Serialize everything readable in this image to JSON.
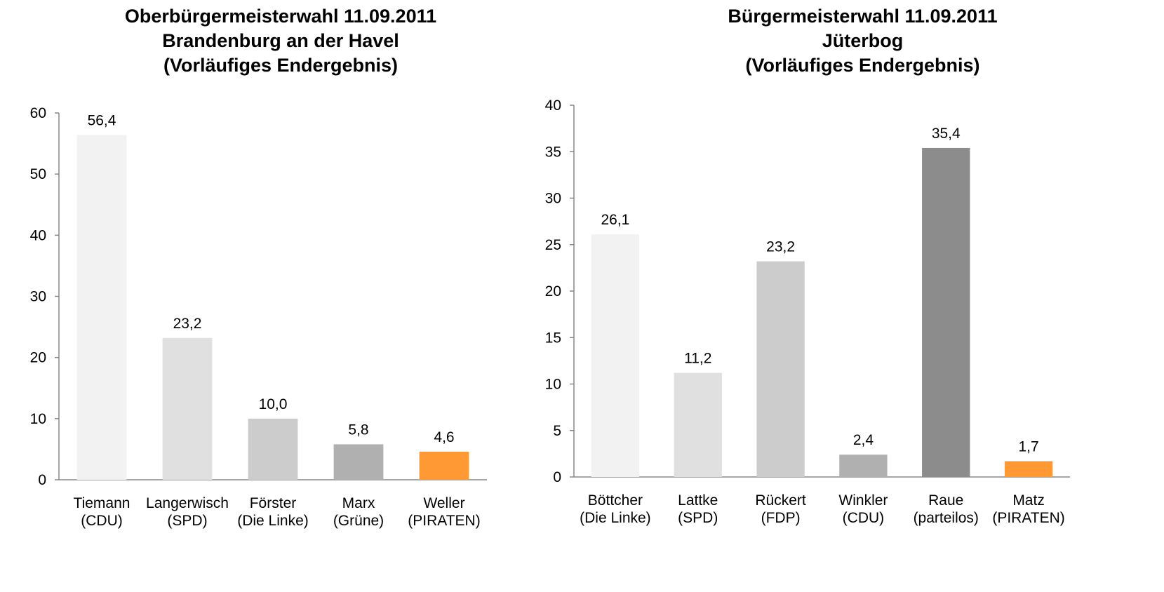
{
  "chart_data": [
    {
      "type": "bar",
      "title": "Oberbürgermeisterwahl 11.09.2011\nBrandenburg an der Havel\n(Vorläufiges Endergebnis)",
      "categories": [
        [
          "Tiemann",
          "(CDU)"
        ],
        [
          "Langerwisch",
          "(SPD)"
        ],
        [
          "Förster",
          "(Die Linke)"
        ],
        [
          "Marx",
          "(Grüne)"
        ],
        [
          "Weller",
          "(PIRATEN)"
        ]
      ],
      "values": [
        56.4,
        23.2,
        10.0,
        5.8,
        4.6
      ],
      "data_labels": [
        "56,4",
        "23,2",
        "10,0",
        "5,8",
        "4,6"
      ],
      "colors": [
        "#f2f2f2",
        "#e0e0e0",
        "#cccccc",
        "#b0b0b0",
        "#ff9933"
      ],
      "ylim": [
        0,
        60
      ],
      "yticks": [
        0,
        10,
        20,
        30,
        40,
        50,
        60
      ],
      "grid": false,
      "xlabel": "",
      "ylabel": ""
    },
    {
      "type": "bar",
      "title": "Bürgermeisterwahl 11.09.2011\nJüterbog\n(Vorläufiges Endergebnis)",
      "categories": [
        [
          "Böttcher",
          "(Die Linke)"
        ],
        [
          "Lattke",
          "(SPD)"
        ],
        [
          "Rückert",
          "(FDP)"
        ],
        [
          "Winkler",
          "(CDU)"
        ],
        [
          "Raue",
          "(parteilos)"
        ],
        [
          "Matz",
          "(PIRATEN)"
        ]
      ],
      "values": [
        26.1,
        11.2,
        23.2,
        2.4,
        35.4,
        1.7
      ],
      "data_labels": [
        "26,1",
        "11,2",
        "23,2",
        "2,4",
        "35,4",
        "1,7"
      ],
      "colors": [
        "#f2f2f2",
        "#e0e0e0",
        "#cccccc",
        "#b0b0b0",
        "#8c8c8c",
        "#ff9933"
      ],
      "ylim": [
        0,
        40
      ],
      "yticks": [
        0,
        5,
        10,
        15,
        20,
        25,
        30,
        35,
        40
      ],
      "grid": false,
      "xlabel": "",
      "ylabel": ""
    }
  ]
}
